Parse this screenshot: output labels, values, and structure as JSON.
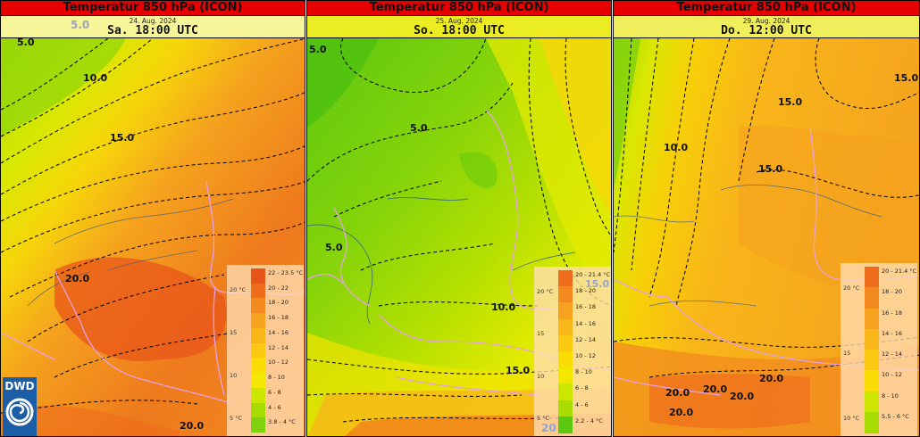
{
  "panels": [
    {
      "title": "Temperatur 850 hPa (ICON)",
      "date": "24. Aug. 2024",
      "time": "Sa. 18:00 UTC",
      "watermark": "5.0",
      "isolines": [
        "5.0",
        "10.0",
        "15.0",
        "20.0",
        "20.0"
      ],
      "legend": {
        "ticks": [
          "20 °C",
          "15",
          "10",
          "5 °C"
        ],
        "labels": [
          "22 - 23.5 °C",
          "20 - 22",
          "18 - 20",
          "16 - 18",
          "14 - 16",
          "12 - 14",
          "10 - 12",
          "8 - 10",
          "6 - 8",
          "4 - 6",
          "3.8 - 4 °C"
        ],
        "colors": [
          "#e8551a",
          "#ee6d1c",
          "#f28a1f",
          "#f5a21e",
          "#f8b619",
          "#fbc812",
          "#fadd05",
          "#f3e600",
          "#cce600",
          "#a8dc00",
          "#7fd20d"
        ]
      }
    },
    {
      "title": "Temperatur 850 hPa (ICON)",
      "date": "25. Aug. 2024",
      "time": "So. 18:00 UTC",
      "watermark": "15.0",
      "watermark2": "20",
      "isolines": [
        "5.0",
        "5.0",
        "5.0",
        "10.0",
        "15.0"
      ],
      "legend": {
        "ticks": [
          "20 °C",
          "15",
          "10",
          "5 °C"
        ],
        "labels": [
          "20 - 21.4 °C",
          "18 - 20",
          "16 - 18",
          "14 - 16",
          "12 - 14",
          "10 - 12",
          "8 - 10",
          "6 - 8",
          "4 - 6",
          "2.2 - 4 °C"
        ],
        "colors": [
          "#ee6d1c",
          "#f28a1f",
          "#f5a21e",
          "#f8b619",
          "#fbc812",
          "#fadd05",
          "#f3e600",
          "#cce600",
          "#a8dc00",
          "#5bc70f"
        ]
      }
    },
    {
      "title": "Temperatur 850 hPa (ICON)",
      "date": "29. Aug. 2024",
      "time": "Do. 12:00 UTC",
      "isolines": [
        "15.0",
        "15.0",
        "10.0",
        "15.0",
        "20.0",
        "20.0",
        "20.0",
        "20.0",
        "20.0"
      ],
      "legend": {
        "ticks": [
          "20 °C",
          "15",
          "10 °C"
        ],
        "labels": [
          "20 - 21.4 °C",
          "18 - 20",
          "16 - 18",
          "14 - 16",
          "12 - 14",
          "10 - 12",
          "8 - 10",
          "5.5 - 6 °C"
        ],
        "colors": [
          "#ee6d1c",
          "#f28a1f",
          "#f5a21e",
          "#f8b619",
          "#fbc812",
          "#fadd05",
          "#cce600",
          "#a8dc00"
        ]
      }
    }
  ],
  "logo": {
    "text": "DWD"
  }
}
